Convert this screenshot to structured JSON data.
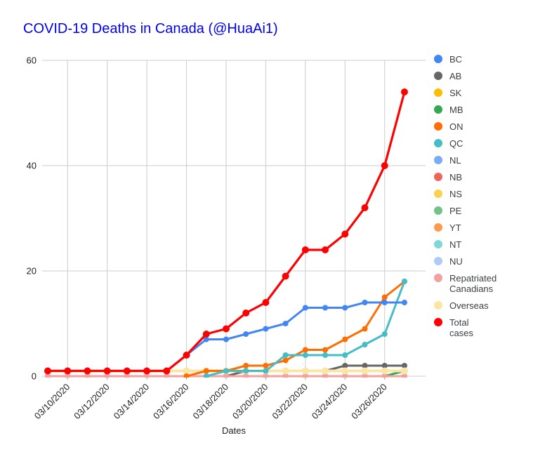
{
  "title": "COVID-19 Deaths in Canada (@HuaAi1)",
  "title_color": "#0000ee",
  "chart_data": {
    "type": "line",
    "xlabel": "Dates",
    "ylabel": "",
    "ylim": [
      0,
      60
    ],
    "yticks": [
      0,
      20,
      40,
      60
    ],
    "grid": true,
    "legend_position": "right",
    "x": [
      "03/09/2020",
      "03/10/2020",
      "03/11/2020",
      "03/12/2020",
      "03/13/2020",
      "03/14/2020",
      "03/15/2020",
      "03/16/2020",
      "03/17/2020",
      "03/18/2020",
      "03/19/2020",
      "03/20/2020",
      "03/21/2020",
      "03/22/2020",
      "03/23/2020",
      "03/24/2020",
      "03/25/2020",
      "03/26/2020",
      "03/27/2020"
    ],
    "x_tick_labels": [
      "03/10/2020",
      "03/12/2020",
      "03/14/2020",
      "03/16/2020",
      "03/18/2020",
      "03/20/2020",
      "03/22/2020",
      "03/24/2020",
      "03/26/2020"
    ],
    "series": [
      {
        "id": "bc",
        "name": "BC",
        "label": "BC",
        "color": "#4285f4",
        "values": [
          1,
          1,
          1,
          1,
          1,
          1,
          1,
          4,
          7,
          7,
          8,
          9,
          10,
          13,
          13,
          13,
          14,
          14,
          14
        ]
      },
      {
        "id": "ab",
        "name": "AB",
        "label": "AB",
        "color": "#666666",
        "values": [
          null,
          null,
          null,
          null,
          null,
          null,
          null,
          null,
          null,
          0,
          1,
          1,
          1,
          1,
          1,
          2,
          2,
          2,
          2
        ]
      },
      {
        "id": "sk",
        "name": "SK",
        "label": "SK",
        "color": "#fbbc04",
        "values": [
          0,
          0,
          0,
          0,
          0,
          0,
          0,
          0,
          0,
          0,
          0,
          0,
          0,
          0,
          0,
          0,
          0,
          0,
          0
        ]
      },
      {
        "id": "mb",
        "name": "MB",
        "label": "MB",
        "color": "#34a853",
        "values": [
          null,
          null,
          null,
          null,
          null,
          null,
          null,
          null,
          null,
          null,
          null,
          null,
          null,
          null,
          null,
          null,
          null,
          0,
          1
        ]
      },
      {
        "id": "on",
        "name": "ON",
        "label": "ON",
        "color": "#ff6d01",
        "values": [
          null,
          null,
          null,
          null,
          null,
          null,
          null,
          0,
          1,
          1,
          2,
          2,
          3,
          5,
          5,
          7,
          9,
          15,
          18
        ]
      },
      {
        "id": "qc",
        "name": "QC",
        "label": "QC",
        "color": "#46bdc6",
        "values": [
          null,
          null,
          null,
          null,
          null,
          null,
          null,
          null,
          0,
          1,
          1,
          1,
          4,
          4,
          4,
          4,
          6,
          8,
          18
        ]
      },
      {
        "id": "nl",
        "name": "NL",
        "label": "NL",
        "color": "#7baaf7",
        "values": [
          0,
          0,
          0,
          0,
          0,
          0,
          0,
          0,
          0,
          0,
          0,
          0,
          0,
          0,
          0,
          0,
          0,
          0,
          0
        ]
      },
      {
        "id": "nb",
        "name": "NB",
        "label": "NB",
        "color": "#ec6759",
        "values": [
          0,
          0,
          0,
          0,
          0,
          0,
          0,
          0,
          0,
          0,
          0,
          0,
          0,
          0,
          0,
          0,
          0,
          0,
          0
        ]
      },
      {
        "id": "ns",
        "name": "NS",
        "label": "NS",
        "color": "#fcd04f",
        "values": [
          0,
          0,
          0,
          0,
          0,
          0,
          0,
          0,
          0,
          0,
          0,
          0,
          0,
          0,
          0,
          0,
          0,
          0,
          0
        ]
      },
      {
        "id": "pe",
        "name": "PE",
        "label": "PE",
        "color": "#71c287",
        "values": [
          0,
          0,
          0,
          0,
          0,
          0,
          0,
          0,
          0,
          0,
          0,
          0,
          0,
          0,
          0,
          0,
          0,
          0,
          0
        ]
      },
      {
        "id": "yt",
        "name": "YT",
        "label": "YT",
        "color": "#ff994d",
        "values": [
          0,
          0,
          0,
          0,
          0,
          0,
          0,
          0,
          0,
          0,
          0,
          0,
          0,
          0,
          0,
          0,
          0,
          0,
          0
        ]
      },
      {
        "id": "nt",
        "name": "NT",
        "label": "NT",
        "color": "#7fd8d4",
        "values": [
          0,
          0,
          0,
          0,
          0,
          0,
          0,
          0,
          0,
          0,
          0,
          0,
          0,
          0,
          0,
          0,
          0,
          0,
          0
        ]
      },
      {
        "id": "nu",
        "name": "NU",
        "label": "NU",
        "color": "#afc9f8",
        "values": [
          0,
          0,
          0,
          0,
          0,
          0,
          0,
          0,
          0,
          0,
          0,
          0,
          0,
          0,
          0,
          0,
          0,
          0,
          0
        ]
      },
      {
        "id": "repatriated-canadians",
        "name": "Repatriated Canadians",
        "label": "Repatriated\nCanadians",
        "color": "#f2a1a0",
        "values": [
          0,
          0,
          0,
          0,
          0,
          0,
          0,
          0,
          0,
          0,
          0,
          0,
          0,
          0,
          0,
          0,
          0,
          0,
          0
        ]
      },
      {
        "id": "overseas",
        "name": "Overseas",
        "label": "Overseas",
        "color": "#fbe5a3",
        "values": [
          1,
          1,
          1,
          1,
          1,
          1,
          1,
          1,
          1,
          1,
          1,
          1,
          1,
          1,
          1,
          1,
          1,
          1,
          1
        ]
      },
      {
        "id": "total-cases",
        "name": "Total cases",
        "label": "Total\ncases",
        "color": "#ff0000",
        "values": [
          1,
          1,
          1,
          1,
          1,
          1,
          1,
          4,
          8,
          9,
          12,
          14,
          19,
          24,
          24,
          27,
          32,
          40,
          54
        ]
      }
    ],
    "draw_order": [
      "nl",
      "sk",
      "nb",
      "ns",
      "pe",
      "yt",
      "nt",
      "nu",
      "mb",
      "ab",
      "repatriated-canadians",
      "overseas",
      "on",
      "qc",
      "bc",
      "total-cases"
    ]
  }
}
